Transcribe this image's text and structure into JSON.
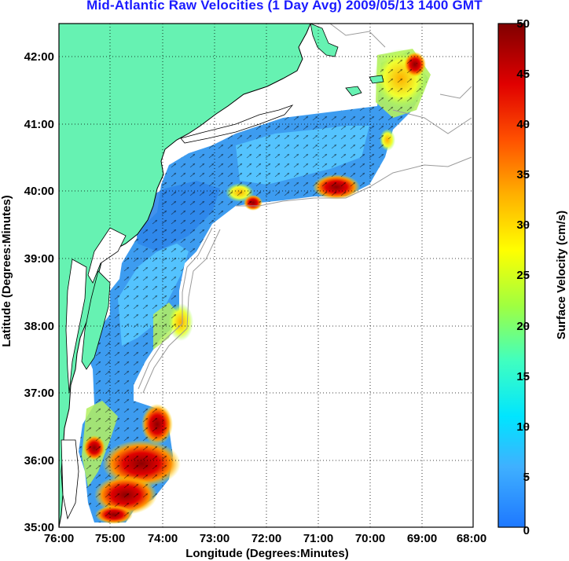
{
  "title": "Mid-Atlantic Raw Velocities (1 Day Avg) 2009/05/13 1400 GMT",
  "axes": {
    "xlabel": "Longitude (Degrees:Minutes)",
    "ylabel": "Latitude (Degrees:Minutes)",
    "x_ticks": [
      "76:00",
      "75:00",
      "74:00",
      "73:00",
      "72:00",
      "71:00",
      "70:00",
      "69:00",
      "68:00"
    ],
    "y_ticks": [
      "42:00",
      "41:00",
      "40:00",
      "39:00",
      "38:00",
      "37:00",
      "36:00",
      "35:00"
    ]
  },
  "colorbar": {
    "label": "Surface Velocity (cm/s)",
    "ticks": [
      "50",
      "45",
      "40",
      "35",
      "30",
      "25",
      "20",
      "15",
      "10",
      "5",
      "0"
    ],
    "range": [
      0,
      50
    ],
    "units": "cm/s"
  },
  "map": {
    "lon_range": [
      -76,
      -68
    ],
    "lat_range": [
      35,
      42.5
    ],
    "grid": "dotted",
    "land_color": "#66f2b2",
    "isobath_color": "#999999"
  },
  "colors": {
    "title": "#1a1aff",
    "land": "#66f2b2",
    "velocity_low": "#1e6eff",
    "velocity_high": "#8c0000"
  }
}
